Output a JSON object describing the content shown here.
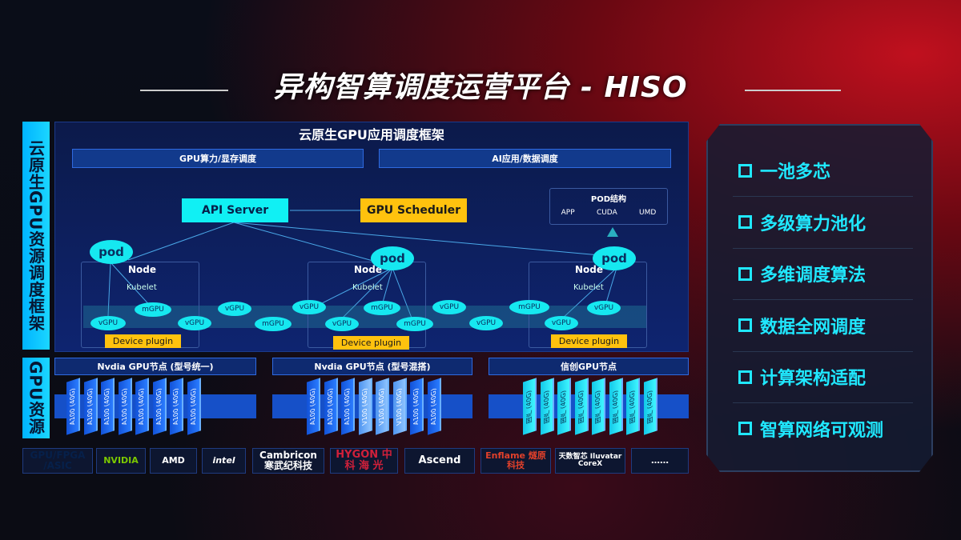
{
  "title": "异构智算调度运营平台 - HISO",
  "side_labels": {
    "scheduling": "云原生GPU资源调度框架",
    "resources": "GPU资源"
  },
  "framework": {
    "title": "云原生GPU应用调度框架",
    "boxes": [
      "GPU算力/显存调度",
      "AI应用/数据调度"
    ]
  },
  "diagram": {
    "api_server": "API Server",
    "gpu_scheduler": "GPU Scheduler",
    "pod_structure": {
      "title": "POD结构",
      "items": [
        "APP",
        "CUDA",
        "UMD"
      ]
    },
    "pod": "pod",
    "node": "Node",
    "kubelet": "Kubelet",
    "device_plugin": "Device plugin",
    "vgpu": "vGPU",
    "mgpu": "mGPU"
  },
  "gpu_nodes": [
    {
      "title": "Nvdia GPU节点 (型号统一)",
      "cards": [
        "A100 (40G)",
        "A100 (40G)",
        "A100 (40G)",
        "A100 (40G)",
        "A100 (40G)",
        "A100 (40G)",
        "A100 (40G)",
        "A100 (40G)"
      ]
    },
    {
      "title": "Nvdia GPU节点 (型号混搭)",
      "cards": [
        "A100 (40G)",
        "A100 (40G)",
        "A100 (40G)",
        "V100 (40G)",
        "V100 (40G)",
        "V100 (40G)",
        "A100 (40G)",
        "A100 (40G)"
      ]
    },
    {
      "title": "信创GPU节点",
      "cards": [
        "国产 (40G)",
        "国产 (40G)",
        "国产 (40G)",
        "国产 (40G)",
        "国产 (40G)",
        "国产 (40G)",
        "国产 (40G)",
        "国产 (40G)"
      ]
    }
  ],
  "vendors": {
    "label": "GPU/FPGA /ASIC",
    "items": [
      "NVIDIA",
      "AMD",
      "intel",
      "Cambricon 寒武纪科技",
      "HYGON 中 科 海 光",
      "Ascend",
      "Enflame 燧原科技",
      "天数智芯 Iluvatar CoreX",
      "……"
    ]
  },
  "features": [
    "一池多芯",
    "多级算力池化",
    "多维调度算法",
    "数据全网调度",
    "计算架构适配",
    "智算网络可观测"
  ],
  "colors": {
    "cyan": "#10f0f4",
    "yellow": "#ffc20e",
    "blue": "#1650c8",
    "accent": "#20e8ff"
  }
}
